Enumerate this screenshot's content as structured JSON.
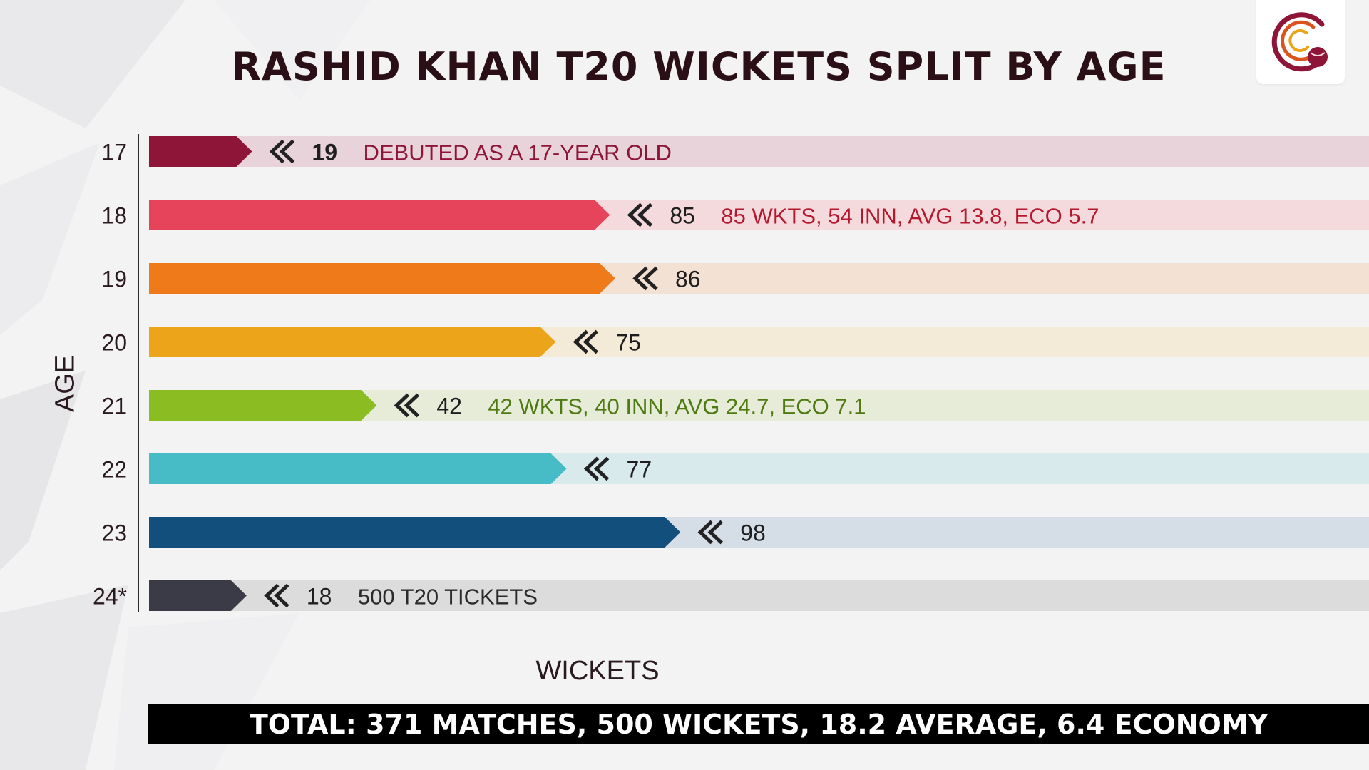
{
  "colors": {
    "title": "#2b0f16",
    "footer_bg": "#000000",
    "footer_text": "#ffffff"
  },
  "header": {
    "title": "RASHID KHAN T20 WICKETS SPLIT BY AGE"
  },
  "logo": {
    "icon": "cricket-ball-logo-icon"
  },
  "footer": {
    "text": "TOTAL: 371 MATCHES, 500 WICKETS, 18.2 AVERAGE, 6.4 ECONOMY"
  },
  "chart_data": {
    "type": "bar",
    "orientation": "horizontal",
    "title": "RASHID KHAN T20 WICKETS SPLIT BY AGE",
    "xlabel": "WICKETS",
    "ylabel": "AGE",
    "xlim": [
      0,
      225
    ],
    "grid": false,
    "legend": "none",
    "categories": [
      "17",
      "18",
      "19",
      "20",
      "21",
      "22",
      "23",
      "24*"
    ],
    "values": [
      19,
      85,
      86,
      75,
      42,
      77,
      98,
      18
    ],
    "value_labels": [
      "19",
      "85",
      "86",
      "75",
      "42",
      "77",
      "98",
      "18"
    ],
    "annotations": [
      "DEBUTED AS A 17-YEAR OLD",
      "85 WKTS, 54 INN, AVG 13.8, ECO 5.7",
      "",
      "",
      "42 WKTS, 40 INN, AVG 24.7, ECO 7.1",
      "",
      "",
      "500 T20 TICKETS"
    ],
    "bar_colors": [
      "#8e1538",
      "#e5445a",
      "#ee7a1a",
      "#eca51a",
      "#8bbd22",
      "#47bcc6",
      "#134f7d",
      "#3b3b47"
    ],
    "track_colors": [
      "#e8d3da",
      "#f4d9dd",
      "#f3e2d4",
      "#f4ead8",
      "#e6ecd7",
      "#d8eaec",
      "#d5dde6",
      "#dcdcdc"
    ],
    "annotation_colors": [
      "#8e1538",
      "#b4182c",
      "",
      "",
      "#4f7a12",
      "",
      "",
      "#2a2a2a"
    ]
  }
}
